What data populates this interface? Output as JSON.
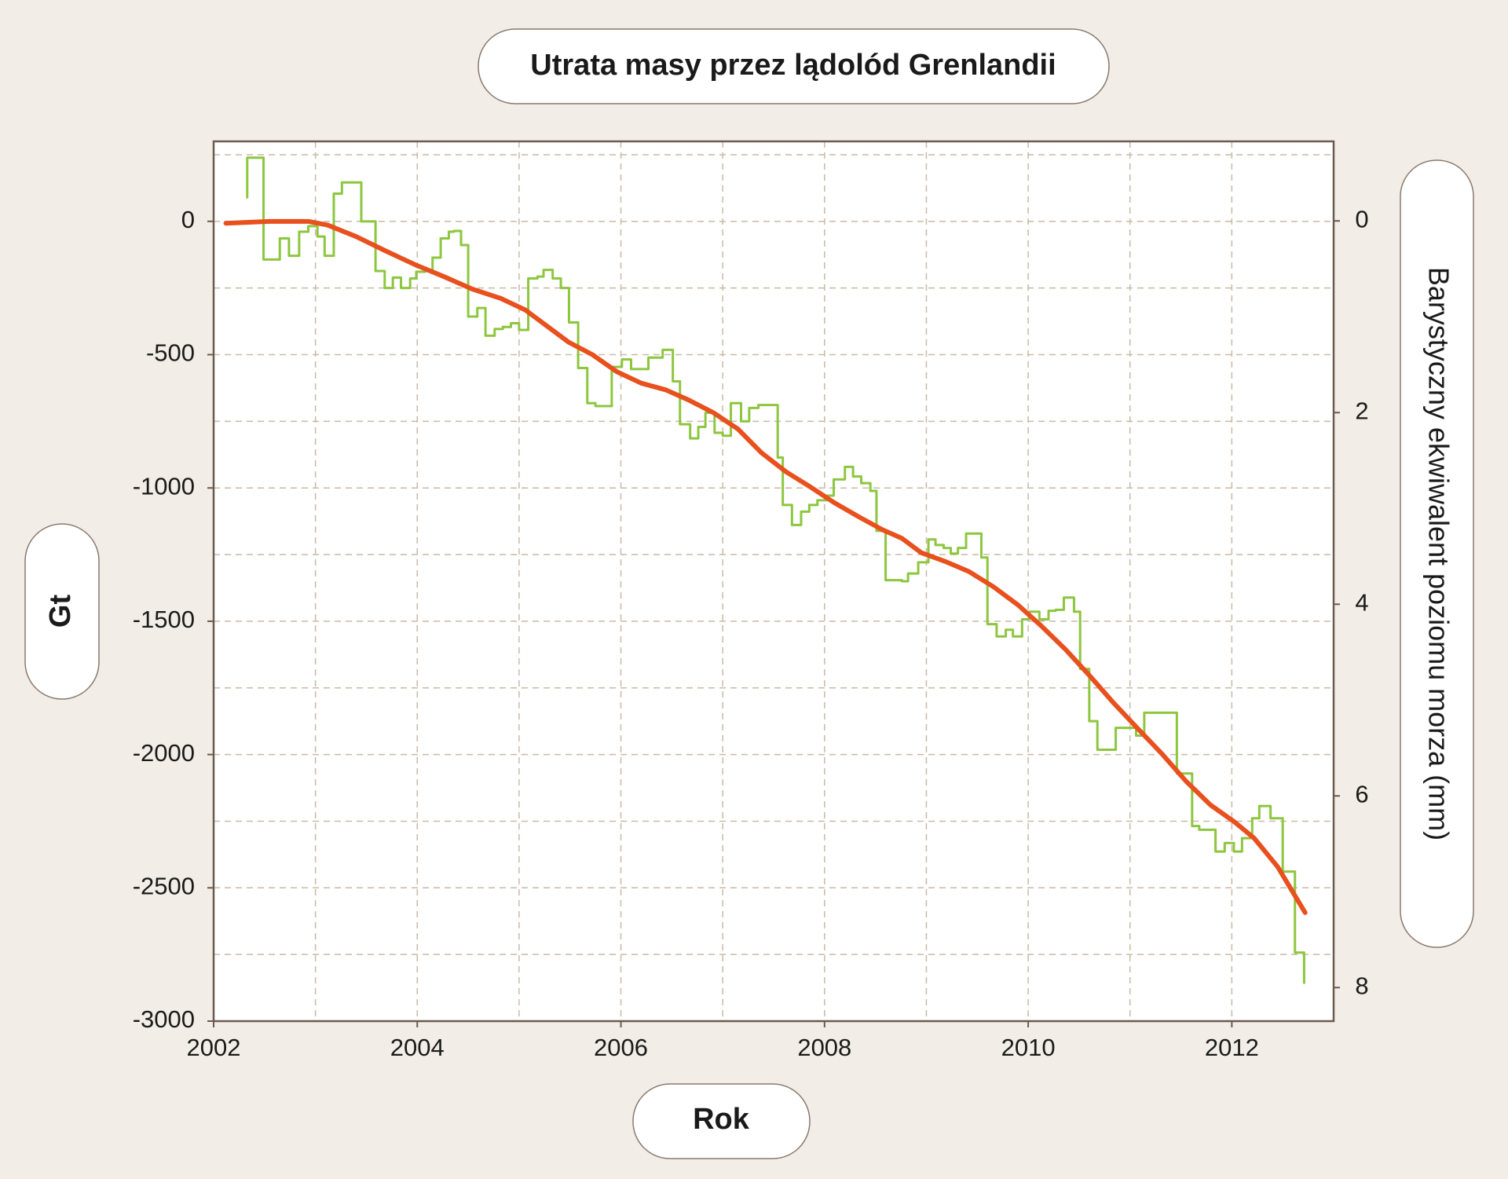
{
  "chart_data": {
    "type": "line",
    "title": "Utrata masy przez lądolód Grenlandii",
    "x_label": "Rok",
    "y_label": "Gt",
    "y2_label": "Barystyczny ekwiwalent poziomu morza (mm)",
    "xlim": [
      2002,
      2013
    ],
    "xticks": [
      2002,
      2004,
      2006,
      2008,
      2010,
      2012
    ],
    "xgrid": [
      2003,
      2004,
      2005,
      2006,
      2007,
      2008,
      2009,
      2010,
      2011,
      2012
    ],
    "ylim": [
      -3000,
      300
    ],
    "yticks": [
      -3000,
      -2500,
      -2000,
      -1500,
      -1000,
      -500,
      0
    ],
    "ygrid": [
      250,
      0,
      -250,
      -500,
      -750,
      -1000,
      -1250,
      -1500,
      -1750,
      -2000,
      -2250,
      -2500,
      -2750
    ],
    "y2lim": [
      8.35,
      -0.83
    ],
    "y2ticks": [
      0,
      2,
      4,
      6,
      8
    ],
    "grid": true,
    "series": [
      {
        "color": "#8dc63f",
        "step": true,
        "x": [
          2002.33,
          2002.33,
          2002.49,
          2002.65,
          2002.74,
          2002.84,
          2002.93,
          2003.02,
          2003.09,
          2003.18,
          2003.26,
          2003.45,
          2003.59,
          2003.68,
          2003.76,
          2003.84,
          2003.93,
          2003.99,
          2004.08,
          2004.15,
          2004.23,
          2004.31,
          2004.36,
          2004.43,
          2004.5,
          2004.59,
          2004.67,
          2004.76,
          2004.84,
          2004.92,
          2005.0,
          2005.09,
          2005.18,
          2005.24,
          2005.33,
          2005.41,
          2005.49,
          2005.58,
          2005.67,
          2005.75,
          2005.91,
          2006.01,
          2006.1,
          2006.27,
          2006.41,
          2006.51,
          2006.58,
          2006.68,
          2006.76,
          2006.83,
          2006.92,
          2007.0,
          2007.08,
          2007.18,
          2007.26,
          2007.35,
          2007.54,
          2007.59,
          2007.68,
          2007.77,
          2007.85,
          2007.93,
          2008.02,
          2008.09,
          2008.2,
          2008.28,
          2008.36,
          2008.45,
          2008.51,
          2008.6,
          2008.76,
          2008.82,
          2008.92,
          2009.02,
          2009.09,
          2009.17,
          2009.24,
          2009.31,
          2009.39,
          2009.54,
          2009.6,
          2009.69,
          2009.78,
          2009.85,
          2009.94,
          2010.01,
          2010.11,
          2010.2,
          2010.27,
          2010.35,
          2010.45,
          2010.51,
          2010.6,
          2010.68,
          2010.86,
          2011.06,
          2011.14,
          2011.46,
          2011.61,
          2011.68,
          2011.84,
          2011.93,
          2012.02,
          2012.1,
          2012.2,
          2012.27,
          2012.38,
          2012.5,
          2012.62,
          2012.71
        ],
        "values": [
          86,
          239,
          -143,
          -64,
          -129,
          -39,
          -18,
          -57,
          -129,
          104,
          146,
          0,
          -186,
          -250,
          -211,
          -250,
          -214,
          -189,
          -182,
          -136,
          -64,
          -39,
          -36,
          -89,
          -357,
          -325,
          -429,
          -404,
          -396,
          -382,
          -407,
          -214,
          -207,
          -182,
          -214,
          -250,
          -379,
          -550,
          -682,
          -693,
          -546,
          -518,
          -554,
          -511,
          -482,
          -600,
          -761,
          -814,
          -771,
          -718,
          -793,
          -804,
          -682,
          -750,
          -700,
          -689,
          -886,
          -1064,
          -1139,
          -1089,
          -1064,
          -1046,
          -1029,
          -968,
          -921,
          -957,
          -982,
          -1011,
          -1161,
          -1346,
          -1350,
          -1321,
          -1279,
          -1193,
          -1214,
          -1225,
          -1246,
          -1225,
          -1171,
          -1261,
          -1511,
          -1557,
          -1532,
          -1557,
          -1493,
          -1464,
          -1493,
          -1461,
          -1457,
          -1411,
          -1464,
          -1679,
          -1875,
          -1982,
          -1900,
          -1929,
          -1843,
          -2071,
          -2268,
          -2282,
          -2364,
          -2332,
          -2364,
          -2314,
          -2239,
          -2193,
          -2239,
          -2439,
          -2743,
          -2860
        ]
      },
      {
        "color": "#e8501e",
        "step": false,
        "x": [
          2002.12,
          2002.55,
          2002.93,
          2003.12,
          2003.4,
          2003.69,
          2003.97,
          2004.26,
          2004.54,
          2004.82,
          2005.06,
          2005.25,
          2005.49,
          2005.72,
          2005.96,
          2006.2,
          2006.44,
          2006.67,
          2006.91,
          2007.15,
          2007.38,
          2007.62,
          2007.86,
          2008.09,
          2008.33,
          2008.57,
          2008.76,
          2008.95,
          2009.18,
          2009.42,
          2009.66,
          2009.9,
          2010.13,
          2010.37,
          2010.61,
          2010.84,
          2011.08,
          2011.32,
          2011.55,
          2011.79,
          2012.03,
          2012.22,
          2012.45,
          2012.72
        ],
        "values": [
          -7,
          0,
          0,
          -14,
          -57,
          -111,
          -161,
          -207,
          -254,
          -289,
          -332,
          -386,
          -454,
          -500,
          -564,
          -607,
          -632,
          -671,
          -718,
          -779,
          -868,
          -939,
          -996,
          -1054,
          -1107,
          -1157,
          -1189,
          -1243,
          -1275,
          -1314,
          -1371,
          -1439,
          -1518,
          -1607,
          -1707,
          -1807,
          -1904,
          -2000,
          -2100,
          -2189,
          -2254,
          -2314,
          -2421,
          -2593
        ]
      }
    ]
  }
}
